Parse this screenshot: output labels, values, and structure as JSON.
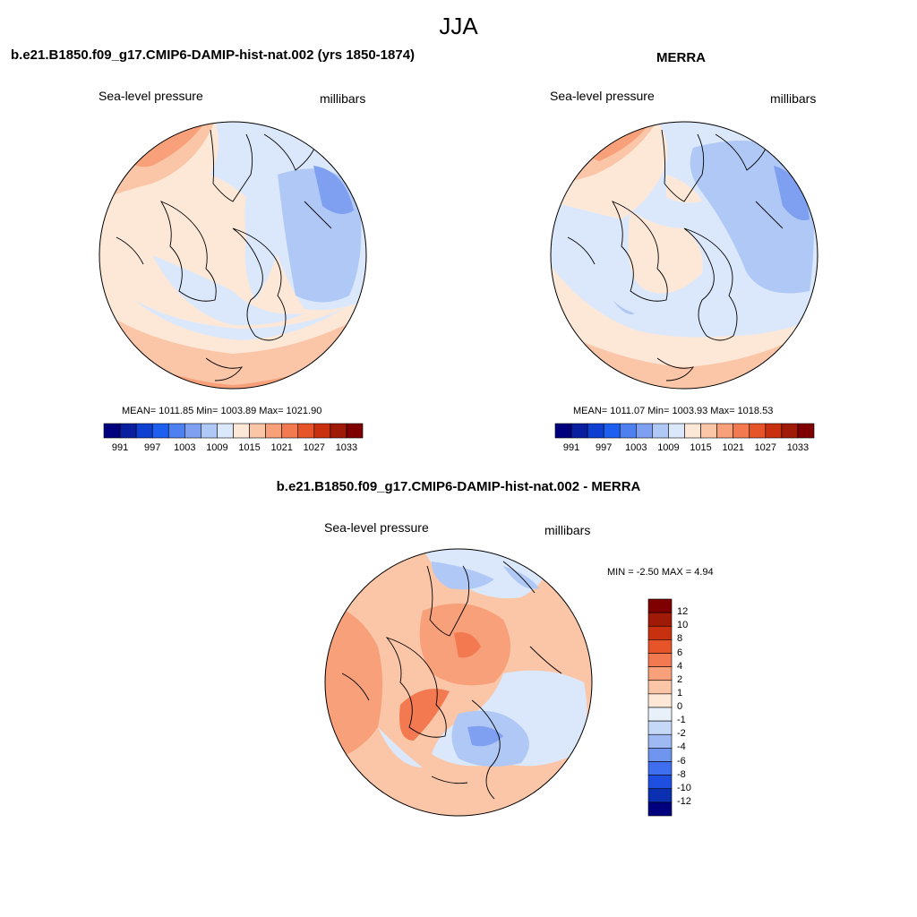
{
  "figure": {
    "title": "JJA"
  },
  "panels": [
    {
      "title": "b.e21.B1850.f09_g17.CMIP6-DAMIP-hist-nat.002 (yrs 1850-1874)",
      "left_label": "Sea-level pressure",
      "right_label": "millibars",
      "stats": "MEAN= 1011.85  Min= 1003.89  Max= 1021.90",
      "colorbar": {
        "orientation": "horizontal",
        "ticks": [
          "991",
          "997",
          "1003",
          "1009",
          "1015",
          "1021",
          "1027",
          "1033"
        ],
        "colors": [
          "#00007f",
          "#0a1fa0",
          "#0f3fd0",
          "#1e5ff0",
          "#4f80f0",
          "#7fa0f0",
          "#b0c8f5",
          "#dbe8fb",
          "#fde8d8",
          "#fbc6a8",
          "#f7a07a",
          "#f37a50",
          "#e8542a",
          "#c8300f",
          "#a01a08",
          "#7f0000"
        ]
      }
    },
    {
      "title": "MERRA",
      "left_label": "Sea-level pressure",
      "right_label": "millibars",
      "stats": "MEAN= 1011.07  Min= 1003.93  Max= 1018.53",
      "colorbar": {
        "orientation": "horizontal",
        "ticks": [
          "991",
          "997",
          "1003",
          "1009",
          "1015",
          "1021",
          "1027",
          "1033"
        ],
        "colors": [
          "#00007f",
          "#0a1fa0",
          "#0f3fd0",
          "#1e5ff0",
          "#4f80f0",
          "#7fa0f0",
          "#b0c8f5",
          "#dbe8fb",
          "#fde8d8",
          "#fbc6a8",
          "#f7a07a",
          "#f37a50",
          "#e8542a",
          "#c8300f",
          "#a01a08",
          "#7f0000"
        ]
      }
    },
    {
      "title": "b.e21.B1850.f09_g17.CMIP6-DAMIP-hist-nat.002 - MERRA",
      "left_label": "Sea-level pressure",
      "right_label": "millibars",
      "stats": "MIN =  -2.50 MAX =   4.94",
      "colorbar": {
        "orientation": "vertical",
        "ticks": [
          "12",
          "10",
          "8",
          "6",
          "4",
          "2",
          "1",
          "0",
          "-1",
          "-2",
          "-4",
          "-6",
          "-8",
          "-10",
          "-12"
        ],
        "colors": [
          "#7f0000",
          "#a01a08",
          "#c8300f",
          "#e8542a",
          "#f37a50",
          "#f7a07a",
          "#fbc6a8",
          "#fde8d8",
          "#e8f0fa",
          "#c6d8f7",
          "#9fbaf2",
          "#6f95ee",
          "#3f6fee",
          "#1e4fe0",
          "#0a2fb0",
          "#00007f"
        ]
      }
    }
  ],
  "palette": {
    "land_outline": "#000000",
    "neutral_blue": "#dbe8fb",
    "light_blue": "#b0c8f5",
    "mid_blue": "#7fa0f0",
    "neutral_warm": "#fde8d8",
    "light_warm": "#fbc6a8",
    "mid_warm": "#f7a07a",
    "strong_warm": "#f37a50"
  }
}
